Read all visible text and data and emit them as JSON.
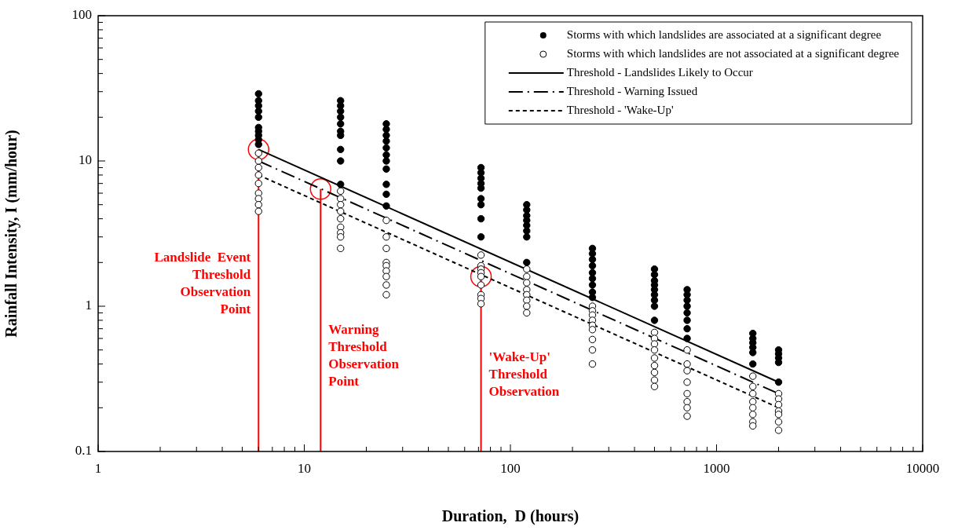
{
  "chart_data": {
    "type": "scatter",
    "xlabel": "Duration,  D (hours)",
    "ylabel": "Rainfall Intensity, I (mm/hour)",
    "log": "xy",
    "xlim": [
      1,
      10000
    ],
    "ylim": [
      0.1,
      100
    ],
    "xticks": [
      1,
      {
        "value": 2,
        "label": null
      },
      {
        "value": 3,
        "label": null
      },
      {
        "value": 4,
        "label": null
      },
      {
        "value": 5,
        "label": null
      },
      {
        "value": 6,
        "label": null
      },
      {
        "value": 7,
        "label": null
      },
      {
        "value": 8,
        "label": null
      },
      {
        "value": 9,
        "label": null
      },
      10,
      {
        "value": 20,
        "label": null
      },
      {
        "value": 30,
        "label": null
      },
      {
        "value": 40,
        "label": null
      },
      {
        "value": 50,
        "label": null
      },
      {
        "value": 60,
        "label": null
      },
      {
        "value": 70,
        "label": null
      },
      {
        "value": 80,
        "label": null
      },
      {
        "value": 90,
        "label": null
      },
      100,
      {
        "value": 200,
        "label": null
      },
      {
        "value": 300,
        "label": null
      },
      {
        "value": 400,
        "label": null
      },
      {
        "value": 500,
        "label": null
      },
      {
        "value": 600,
        "label": null
      },
      {
        "value": 700,
        "label": null
      },
      {
        "value": 800,
        "label": null
      },
      {
        "value": 900,
        "label": null
      },
      1000,
      {
        "value": 2000,
        "label": null
      },
      {
        "value": 3000,
        "label": null
      },
      {
        "value": 4000,
        "label": null
      },
      {
        "value": 5000,
        "label": null
      },
      {
        "value": 6000,
        "label": null
      },
      {
        "value": 7000,
        "label": null
      },
      {
        "value": 8000,
        "label": null
      },
      {
        "value": 9000,
        "label": null
      },
      10000
    ],
    "yticks": [
      0.1,
      {
        "value": 0.2,
        "label": null
      },
      {
        "value": 0.3,
        "label": null
      },
      {
        "value": 0.4,
        "label": null
      },
      {
        "value": 0.5,
        "label": null
      },
      {
        "value": 0.6,
        "label": null
      },
      {
        "value": 0.7,
        "label": null
      },
      {
        "value": 0.8,
        "label": null
      },
      {
        "value": 0.9,
        "label": null
      },
      1,
      {
        "value": 2,
        "label": null
      },
      {
        "value": 3,
        "label": null
      },
      {
        "value": 4,
        "label": null
      },
      {
        "value": 5,
        "label": null
      },
      {
        "value": 6,
        "label": null
      },
      {
        "value": 7,
        "label": null
      },
      {
        "value": 8,
        "label": null
      },
      {
        "value": 9,
        "label": null
      },
      10,
      {
        "value": 20,
        "label": null
      },
      {
        "value": 30,
        "label": null
      },
      {
        "value": 40,
        "label": null
      },
      {
        "value": 50,
        "label": null
      },
      {
        "value": 60,
        "label": null
      },
      {
        "value": 70,
        "label": null
      },
      {
        "value": 80,
        "label": null
      },
      {
        "value": 90,
        "label": null
      },
      100
    ],
    "grid": false,
    "legend": "top right",
    "series": [
      {
        "name": "Storms with which landslides are associated at a significant degree",
        "type": "scatter",
        "marker": "circle",
        "color": "#000000",
        "x": [
          6,
          6,
          6,
          6,
          6,
          6,
          6,
          6,
          6,
          6,
          15,
          15,
          15,
          15,
          15,
          15,
          15,
          15,
          15,
          15,
          25,
          25,
          25,
          25,
          25,
          25,
          25,
          25,
          25,
          25,
          25,
          72,
          72,
          72,
          72,
          72,
          72,
          72,
          72,
          72,
          120,
          120,
          120,
          120,
          120,
          120,
          120,
          120,
          250,
          250,
          250,
          250,
          250,
          250,
          250,
          250,
          250,
          500,
          500,
          500,
          500,
          500,
          500,
          500,
          500,
          500,
          720,
          720,
          720,
          720,
          720,
          720,
          720,
          720,
          1500,
          1500,
          1500,
          1500,
          1500,
          1500,
          2000,
          2000,
          2000,
          2000,
          2000
        ],
        "values": [
          29,
          26,
          24,
          22,
          20,
          17,
          16,
          15,
          14,
          13,
          26,
          24,
          22,
          20,
          18,
          16,
          15,
          12,
          10,
          6.9,
          18,
          16.5,
          15,
          13.7,
          12.3,
          11,
          10,
          8.8,
          6.9,
          5.9,
          4.9,
          9,
          8.3,
          7.6,
          7,
          6.5,
          5.5,
          5,
          4,
          3,
          5,
          4.6,
          4.2,
          3.9,
          3.6,
          3.3,
          3,
          2,
          2.5,
          2.3,
          2.1,
          1.9,
          1.7,
          1.55,
          1.4,
          1.25,
          1.15,
          1.8,
          1.65,
          1.5,
          1.4,
          1.3,
          1.2,
          1.1,
          1,
          0.8,
          1.3,
          1.2,
          1.1,
          1,
          0.9,
          0.8,
          0.7,
          0.6,
          0.65,
          0.6,
          0.56,
          0.52,
          0.48,
          0.4,
          0.5,
          0.47,
          0.44,
          0.41,
          0.3
        ]
      },
      {
        "name": "Storms with which landslides are not associated at a significant degree",
        "type": "scatter",
        "marker": "circle-open",
        "color": "#000000",
        "x": [
          6,
          6,
          6,
          6,
          6,
          6,
          6,
          6,
          6,
          15,
          15,
          15,
          15,
          15,
          15,
          15,
          15,
          15,
          25,
          25,
          25,
          25,
          25,
          25,
          25,
          25,
          25,
          72,
          72,
          72,
          72,
          72,
          72,
          72,
          72,
          72,
          120,
          120,
          120,
          120,
          120,
          120,
          120,
          120,
          250,
          250,
          250,
          250,
          250,
          250,
          250,
          250,
          250,
          500,
          500,
          500,
          500,
          500,
          500,
          500,
          500,
          500,
          720,
          720,
          720,
          720,
          720,
          720,
          720,
          720,
          1500,
          1500,
          1500,
          1500,
          1500,
          1500,
          1500,
          1500,
          2000,
          2000,
          2000,
          2000,
          2000,
          2000,
          2000
        ],
        "values": [
          11.3,
          10,
          9,
          8,
          7,
          6,
          5.5,
          5,
          4.5,
          6.2,
          5.5,
          5,
          4.5,
          4,
          3.5,
          3.2,
          3,
          2.5,
          3.9,
          3,
          2.5,
          2,
          1.9,
          1.75,
          1.6,
          1.4,
          1.2,
          2.25,
          1.9,
          1.8,
          1.7,
          1.6,
          1.4,
          1.2,
          1.13,
          1.04,
          1.8,
          1.6,
          1.45,
          1.3,
          1.2,
          1.1,
          1,
          0.9,
          1,
          0.93,
          0.87,
          0.8,
          0.74,
          0.69,
          0.59,
          0.5,
          0.4,
          0.66,
          0.6,
          0.55,
          0.5,
          0.44,
          0.39,
          0.35,
          0.31,
          0.28,
          0.5,
          0.4,
          0.36,
          0.3,
          0.25,
          0.22,
          0.2,
          0.175,
          0.33,
          0.28,
          0.25,
          0.22,
          0.2,
          0.18,
          0.16,
          0.15,
          0.25,
          0.23,
          0.21,
          0.19,
          0.18,
          0.16,
          0.14
        ]
      },
      {
        "name": "Threshold - Landslides Likely to Occur",
        "type": "line",
        "line_style": "solid",
        "color": "#000000",
        "x": [
          6,
          2000
        ],
        "values": [
          12,
          0.3
        ]
      },
      {
        "name": "Threshold - Warning Issued",
        "type": "line",
        "line_style": "dashdot",
        "color": "#000000",
        "x": [
          6,
          2000
        ],
        "values": [
          10,
          0.25
        ]
      },
      {
        "name": "Threshold - 'Wake-Up'",
        "type": "line",
        "line_style": "dashed",
        "color": "#000000",
        "x": [
          6,
          2000
        ],
        "values": [
          8,
          0.2
        ]
      },
      {
        "type": "bubble",
        "marker": "circle-open",
        "color": "#ff0000",
        "x": [
          6,
          12,
          72
        ],
        "values": [
          12,
          6.4,
          1.6
        ],
        "sizes": [
          1,
          1,
          1
        ]
      },
      {
        "type": "line",
        "line_style": "solid",
        "color": "#ff0000",
        "x": [
          6,
          6
        ],
        "values": [
          0.1,
          12
        ]
      },
      {
        "type": "line",
        "line_style": "solid",
        "color": "#ff0000",
        "x": [
          12,
          12
        ],
        "values": [
          0.1,
          6.4
        ]
      },
      {
        "type": "line",
        "line_style": "solid",
        "color": "#ff0000",
        "x": [
          72,
          72
        ],
        "values": [
          0.1,
          1.6
        ]
      }
    ],
    "annotations": [
      {
        "text": "Landslide  Event\nThreshold\nObservation\nPoint",
        "x": 6,
        "y": 2.4
      },
      {
        "text": "Warning\nThreshold\nObservation\nPoint",
        "x": 12,
        "y": 0.76
      },
      {
        "text": "'Wake-Up'\nThreshold\nObservation",
        "x": 72,
        "y": 0.49
      }
    ]
  }
}
